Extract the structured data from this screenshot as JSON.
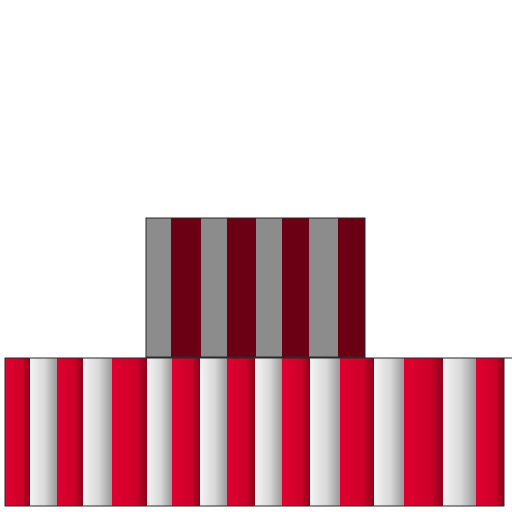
{
  "colors": {
    "background": "#ffffff",
    "outline": "#2a2a2a",
    "upper_block": {
      "grey": "#8c8c8c",
      "dark_red": "#6b0014"
    },
    "lower_block": {
      "red": "#d6002c",
      "red_shadow": "#8a0019",
      "silver_light": "#eeeeee",
      "silver_dark": "#9a9a9a"
    }
  },
  "upper_block": {
    "stripe_pattern": [
      "grey",
      "dark_red",
      "grey",
      "dark_red",
      "grey",
      "dark_red",
      "grey",
      "dark_red"
    ]
  },
  "lower_block": {
    "stripe_pattern": [
      "red",
      "silver",
      "red",
      "silver",
      "red",
      "silver",
      "red",
      "silver",
      "red",
      "silver",
      "red",
      "silver",
      "red",
      "silver",
      "red",
      "silver",
      "silver",
      "red",
      "silver",
      "red"
    ]
  }
}
